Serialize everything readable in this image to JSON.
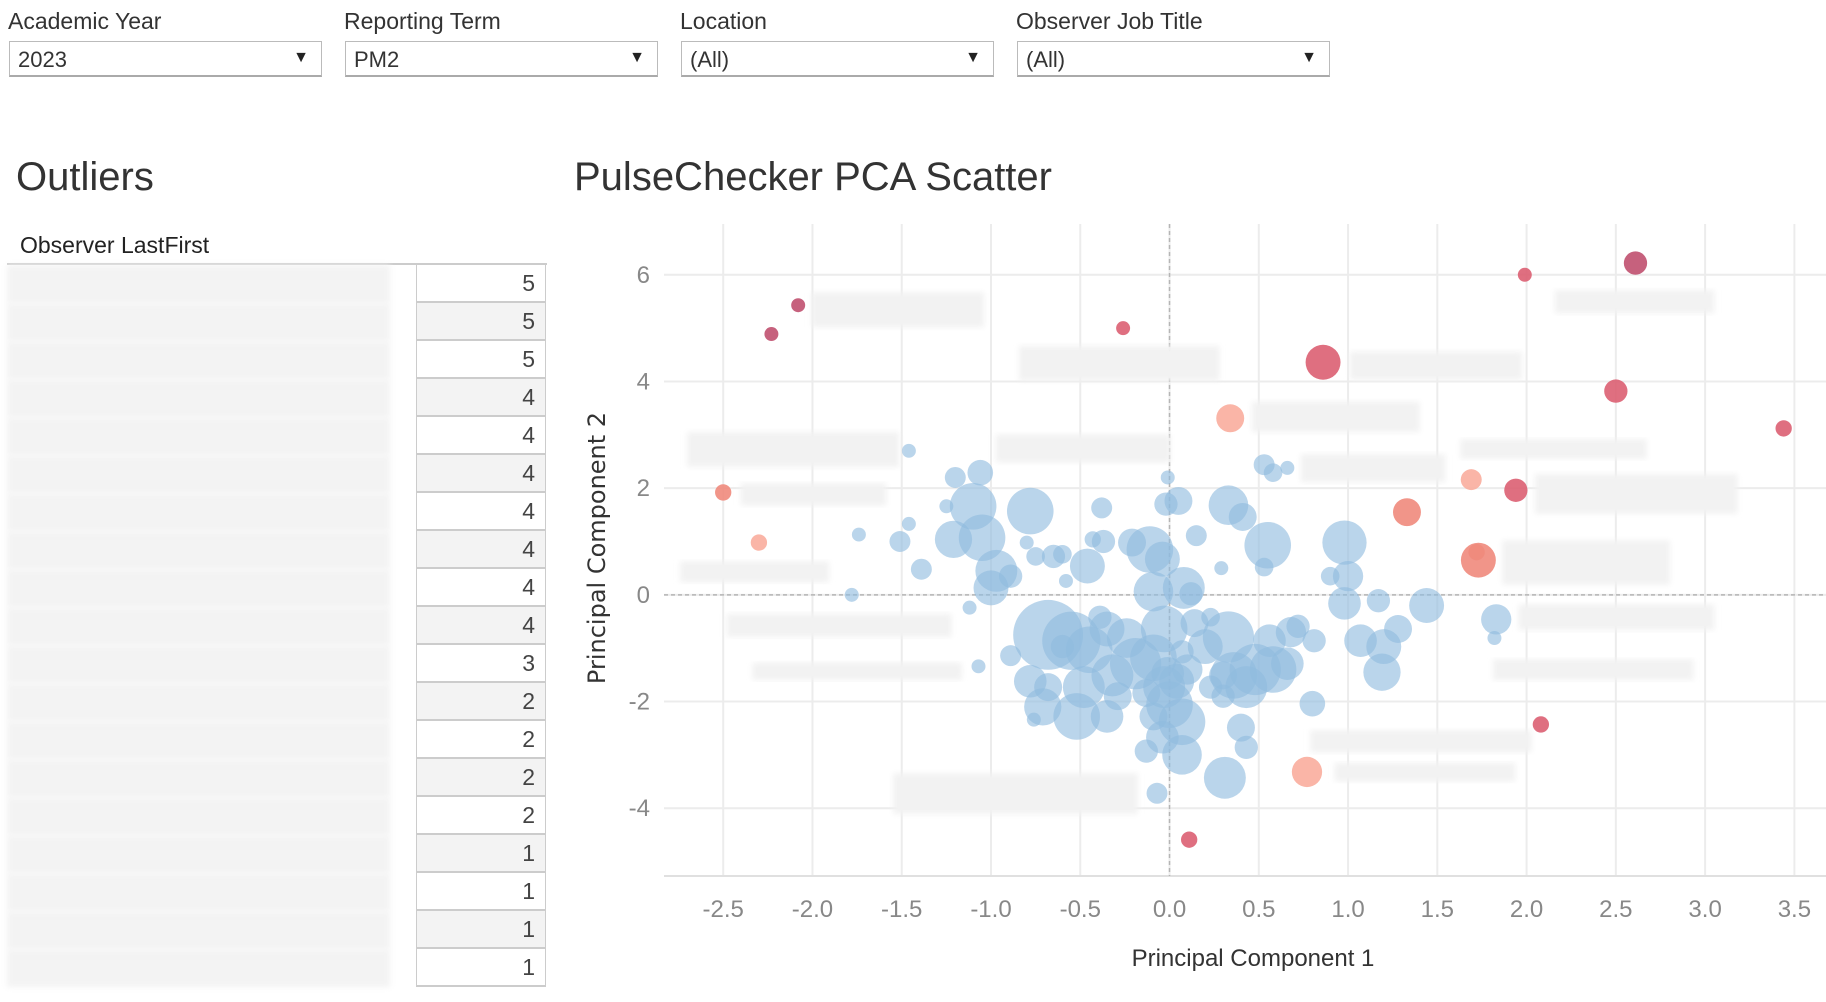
{
  "filters": [
    {
      "label": "Academic Year",
      "value": "2023"
    },
    {
      "label": "Reporting Term",
      "value": "PM2"
    },
    {
      "label": "Location",
      "value": "(All)"
    },
    {
      "label": "Observer Job Title",
      "value": "(All)"
    }
  ],
  "outliers": {
    "title": "Outliers",
    "column_header": "Observer LastFirst",
    "values": [
      "5",
      "5",
      "5",
      "4",
      "4",
      "4",
      "4",
      "4",
      "4",
      "4",
      "3",
      "2",
      "2",
      "2",
      "2",
      "1",
      "1",
      "1",
      "1"
    ]
  },
  "chart_data": {
    "type": "scatter",
    "title": "PulseChecker PCA Scatter",
    "xlabel": "Principal Component 1",
    "ylabel": "Principal Component 2",
    "xlim": [
      -2.85,
      3.65
    ],
    "ylim": [
      -5.4,
      6.9
    ],
    "xticks": [
      "-2.5",
      "-2.0",
      "-1.5",
      "-1.0",
      "-0.5",
      "0.0",
      "0.5",
      "1.0",
      "1.5",
      "2.0",
      "2.5",
      "3.0",
      "3.5"
    ],
    "yticks": [
      "6",
      "4",
      "2",
      "0",
      "-2",
      "-4"
    ],
    "grid": true,
    "colors": {
      "normal": "#8fbcdf",
      "outlier_dark": "#c0506f",
      "outlier_red": "#dc5f72",
      "outlier_salmon": "#f08a7c",
      "outlier_light": "#f9ad9d"
    },
    "outlier_points": [
      {
        "x": -2.08,
        "y": 5.43,
        "size": 6,
        "color": "outlier_dark"
      },
      {
        "x": -2.23,
        "y": 4.89,
        "size": 6,
        "color": "outlier_dark"
      },
      {
        "x": -0.26,
        "y": 5.0,
        "size": 6,
        "color": "outlier_red"
      },
      {
        "x": 0.86,
        "y": 4.36,
        "size": 15,
        "color": "outlier_red"
      },
      {
        "x": 1.99,
        "y": 6.0,
        "size": 6,
        "color": "outlier_red"
      },
      {
        "x": 2.61,
        "y": 6.22,
        "size": 10,
        "color": "outlier_dark"
      },
      {
        "x": 2.5,
        "y": 3.82,
        "size": 10,
        "color": "outlier_red"
      },
      {
        "x": 3.44,
        "y": 3.12,
        "size": 7,
        "color": "outlier_red"
      },
      {
        "x": 0.34,
        "y": 3.31,
        "size": 12,
        "color": "outlier_light"
      },
      {
        "x": 1.69,
        "y": 2.16,
        "size": 9,
        "color": "outlier_light"
      },
      {
        "x": 1.94,
        "y": 1.96,
        "size": 10,
        "color": "outlier_red"
      },
      {
        "x": 1.33,
        "y": 1.55,
        "size": 12,
        "color": "outlier_salmon"
      },
      {
        "x": 1.73,
        "y": 0.65,
        "size": 15,
        "color": "outlier_salmon"
      },
      {
        "x": 1.72,
        "y": 0.8,
        "size": 7,
        "color": "outlier_salmon"
      },
      {
        "x": -2.5,
        "y": 1.92,
        "size": 7,
        "color": "outlier_salmon"
      },
      {
        "x": -2.3,
        "y": 0.98,
        "size": 7,
        "color": "outlier_light"
      },
      {
        "x": 2.08,
        "y": -2.43,
        "size": 7,
        "color": "outlier_red"
      },
      {
        "x": 0.77,
        "y": -3.32,
        "size": 13,
        "color": "outlier_light"
      },
      {
        "x": 0.11,
        "y": -4.59,
        "size": 7,
        "color": "outlier_red"
      }
    ],
    "points": [
      [
        -1.46,
        2.7,
        6
      ],
      [
        -1.2,
        2.2,
        9
      ],
      [
        -1.06,
        2.29,
        11
      ],
      [
        -1.25,
        1.66,
        6
      ],
      [
        -1.1,
        1.66,
        20
      ],
      [
        -0.78,
        1.57,
        20
      ],
      [
        -0.38,
        1.63,
        9
      ],
      [
        -0.01,
        2.2,
        6
      ],
      [
        -0.02,
        1.7,
        10
      ],
      [
        0.05,
        1.76,
        12
      ],
      [
        0.33,
        1.68,
        17
      ],
      [
        0.41,
        1.46,
        12
      ],
      [
        0.53,
        2.44,
        9
      ],
      [
        0.58,
        2.29,
        8
      ],
      [
        0.66,
        2.38,
        6
      ],
      [
        -1.74,
        1.13,
        6
      ],
      [
        -1.46,
        1.33,
        6
      ],
      [
        -1.51,
        1.0,
        9
      ],
      [
        -1.21,
        1.04,
        16
      ],
      [
        -1.05,
        1.07,
        20
      ],
      [
        -0.97,
        0.45,
        18
      ],
      [
        -1.0,
        0.13,
        15
      ],
      [
        -0.89,
        0.35,
        10
      ],
      [
        -0.8,
        0.98,
        6
      ],
      [
        -0.75,
        0.72,
        8
      ],
      [
        -0.65,
        0.72,
        10
      ],
      [
        -0.6,
        0.76,
        8
      ],
      [
        -0.46,
        0.54,
        15
      ],
      [
        -0.43,
        1.04,
        7
      ],
      [
        -0.37,
        1.0,
        10
      ],
      [
        -0.21,
        0.98,
        12
      ],
      [
        -0.11,
        0.85,
        20
      ],
      [
        -0.04,
        0.67,
        15
      ],
      [
        0.15,
        1.11,
        9
      ],
      [
        0.55,
        0.93,
        20
      ],
      [
        0.53,
        0.52,
        8
      ],
      [
        0.29,
        0.5,
        6
      ],
      [
        0.98,
        0.98,
        19
      ],
      [
        0.9,
        0.35,
        8
      ],
      [
        1.0,
        0.35,
        13
      ],
      [
        0.98,
        -0.16,
        14
      ],
      [
        1.17,
        -0.11,
        10
      ],
      [
        1.44,
        -0.2,
        15
      ],
      [
        1.83,
        -0.46,
        13
      ],
      [
        1.82,
        -0.81,
        6
      ],
      [
        -1.39,
        0.48,
        9
      ],
      [
        -1.78,
        0.0,
        6
      ],
      [
        -1.12,
        -0.24,
        6
      ],
      [
        -0.89,
        -1.14,
        9
      ],
      [
        -1.07,
        -1.34,
        6
      ],
      [
        -0.58,
        0.26,
        6
      ],
      [
        -0.09,
        0.06,
        17
      ],
      [
        0.08,
        0.13,
        18
      ],
      [
        0.14,
        -0.53,
        12
      ],
      [
        -0.03,
        -0.64,
        20
      ],
      [
        0.33,
        -0.79,
        22
      ],
      [
        0.56,
        -0.86,
        14
      ],
      [
        0.68,
        -0.7,
        13
      ],
      [
        0.81,
        -0.86,
        10
      ],
      [
        0.58,
        -1.4,
        20
      ],
      [
        0.66,
        -1.29,
        14
      ],
      [
        0.72,
        -0.59,
        10
      ],
      [
        1.07,
        -0.86,
        14
      ],
      [
        1.2,
        -0.97,
        15
      ],
      [
        1.28,
        -0.64,
        12
      ],
      [
        1.19,
        -1.45,
        16
      ],
      [
        0.8,
        -2.04,
        11
      ],
      [
        -0.68,
        -0.75,
        30
      ],
      [
        -0.55,
        -0.86,
        25
      ],
      [
        -0.45,
        -1.03,
        20
      ],
      [
        -0.35,
        -0.64,
        15
      ],
      [
        -0.24,
        -0.81,
        17
      ],
      [
        -0.19,
        -1.29,
        22
      ],
      [
        -0.32,
        -1.51,
        18
      ],
      [
        -0.09,
        -1.18,
        20
      ],
      [
        -0.03,
        -1.73,
        18
      ],
      [
        0.04,
        -1.62,
        15
      ],
      [
        0.1,
        -1.4,
        13
      ],
      [
        0.2,
        -0.97,
        15
      ],
      [
        0.3,
        -1.51,
        12
      ],
      [
        0.36,
        -1.51,
        20
      ],
      [
        0.43,
        -1.73,
        18
      ],
      [
        0.48,
        -1.4,
        22
      ],
      [
        -0.78,
        -1.62,
        14
      ],
      [
        -0.71,
        -2.1,
        16
      ],
      [
        -0.68,
        -1.73,
        12
      ],
      [
        -0.6,
        -0.97,
        10
      ],
      [
        -0.52,
        -2.28,
        20
      ],
      [
        -0.35,
        -2.28,
        14
      ],
      [
        -0.48,
        -1.73,
        18
      ],
      [
        -0.13,
        -1.84,
        12
      ],
      [
        0.0,
        -2.06,
        20
      ],
      [
        0.07,
        -2.38,
        20
      ],
      [
        -0.09,
        -2.28,
        12
      ],
      [
        0.07,
        -3.0,
        17
      ],
      [
        -0.13,
        -2.93,
        10
      ],
      [
        0.4,
        -2.49,
        12
      ],
      [
        0.43,
        -2.86,
        10
      ],
      [
        -0.01,
        -1.47,
        14
      ],
      [
        -0.39,
        -0.42,
        10
      ],
      [
        0.12,
        0.02,
        10
      ],
      [
        0.3,
        -1.9,
        10
      ],
      [
        -0.76,
        -2.34,
        6
      ],
      [
        0.31,
        -3.43,
        18
      ],
      [
        -0.07,
        -3.72,
        9
      ],
      [
        0.23,
        -0.42,
        8
      ],
      [
        -0.29,
        -1.9,
        12
      ],
      [
        -0.04,
        -2.67,
        14
      ],
      [
        0.07,
        -1.07,
        10
      ],
      [
        0.23,
        -1.73,
        10
      ]
    ]
  }
}
